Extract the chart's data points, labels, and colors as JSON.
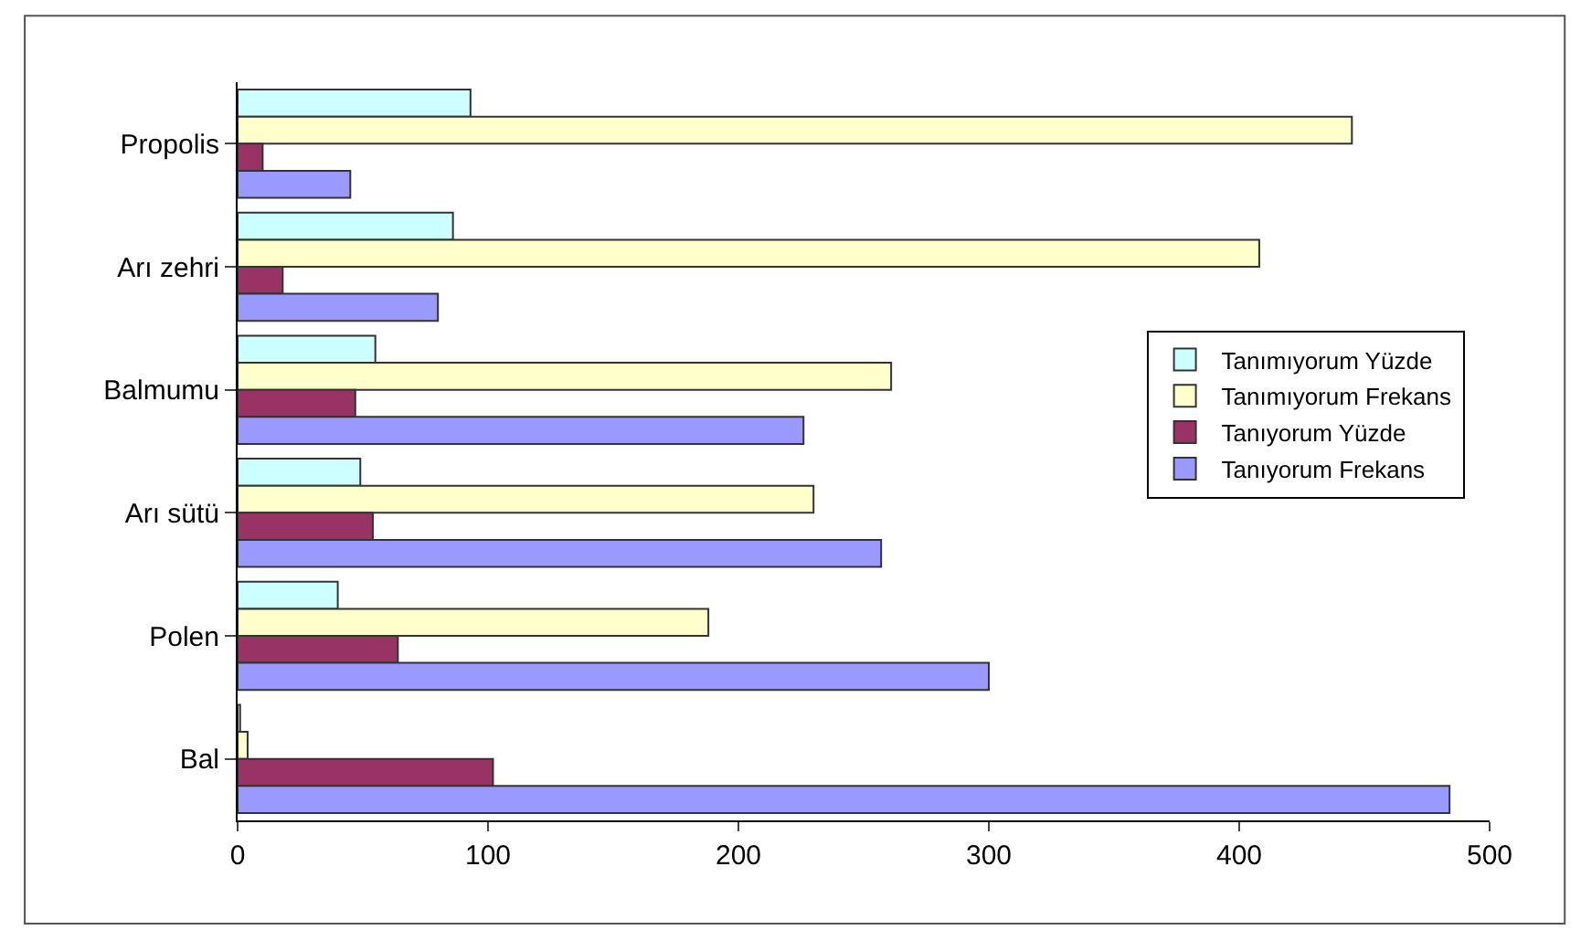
{
  "chart_data": {
    "type": "bar",
    "orientation": "horizontal",
    "categories": [
      "Propolis",
      "Arı zehri",
      "Balmumu",
      "Arı sütü",
      "Polen",
      "Bal"
    ],
    "series": [
      {
        "name": "Tanımıyorum Yüzde",
        "color": "#ccffff",
        "values": [
          93,
          86,
          55,
          49,
          40,
          1
        ]
      },
      {
        "name": "Tanımıyorum Frekans",
        "color": "#ffffcc",
        "values": [
          445,
          408,
          261,
          230,
          188,
          4
        ]
      },
      {
        "name": "Tanıyorum Yüzde",
        "color": "#993366",
        "values": [
          10,
          18,
          47,
          54,
          64,
          102
        ]
      },
      {
        "name": "Tanıyorum Frekans",
        "color": "#9999ff",
        "values": [
          45,
          80,
          226,
          257,
          300,
          484
        ]
      }
    ],
    "xlim": [
      0,
      500
    ],
    "xticks": [
      0,
      100,
      200,
      300,
      400,
      500
    ],
    "legend": "right"
  }
}
